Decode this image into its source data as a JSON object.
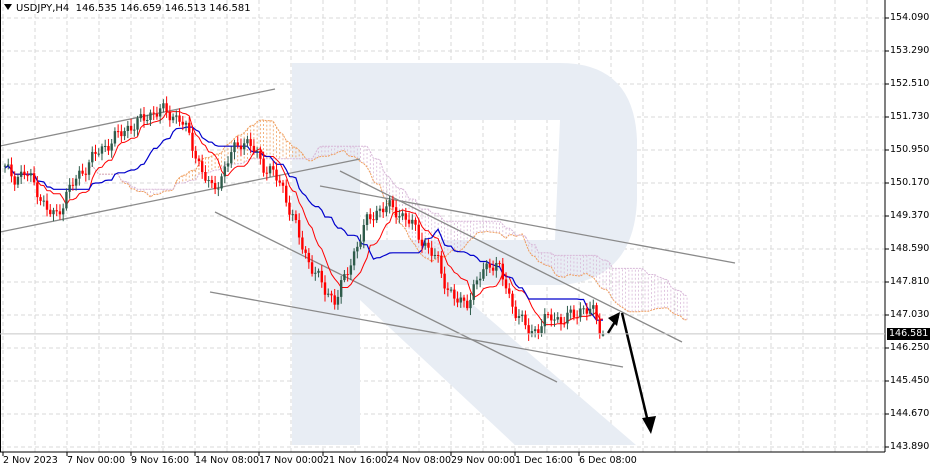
{
  "header": {
    "symbol": "USDJPY,H4",
    "ohlc": "146.535 146.659 146.513 146.581"
  },
  "current_price": "146.581",
  "y_axis": {
    "labels": [
      "154.090",
      "153.290",
      "152.510",
      "151.730",
      "150.950",
      "150.170",
      "149.370",
      "148.590",
      "147.810",
      "147.030",
      "146.250",
      "145.450",
      "144.670",
      "143.890"
    ]
  },
  "x_axis": {
    "labels": [
      "2 Nov 2023",
      "7 Nov 00:00",
      "9 Nov 16:00",
      "14 Nov 08:00",
      "17 Nov 00:00",
      "21 Nov 16:00",
      "24 Nov 08:00",
      "29 Nov 00:00",
      "1 Dec 16:00",
      "6 Dec 08:00"
    ]
  },
  "colors": {
    "bull": "#2e5b4a",
    "bear": "#ff0000",
    "tenkan": "#ff0000",
    "kijun": "#0000cc",
    "senkou_a": "#f0a060",
    "senkou_b": "#d8b8d8",
    "trendline": "#8a8a8a",
    "arrow": "#000000",
    "grid": "#d8d8d8",
    "watermark": "#e8edf4"
  },
  "chart_data": {
    "type": "candlestick",
    "title": "USDJPY,H4",
    "xlabel": "",
    "ylabel": "",
    "ylim": [
      143.89,
      154.09
    ],
    "grid": true,
    "x": [
      "2 Nov 2023",
      "7 Nov 00:00",
      "9 Nov 16:00",
      "14 Nov 08:00",
      "17 Nov 00:00",
      "21 Nov 16:00",
      "24 Nov 08:00",
      "29 Nov 00:00",
      "1 Dec 16:00",
      "6 Dec 08:00"
    ],
    "last_bar": {
      "open": 146.535,
      "high": 146.659,
      "low": 146.513,
      "close": 146.581
    },
    "price_path_close": [
      150.5,
      150.3,
      150.4,
      150.1,
      149.5,
      149.4,
      149.9,
      150.3,
      150.6,
      150.9,
      151.1,
      151.3,
      151.5,
      151.6,
      151.8,
      151.9,
      151.8,
      151.7,
      151.2,
      150.5,
      150.0,
      150.3,
      150.9,
      151.2,
      151.0,
      150.6,
      150.4,
      150.0,
      149.3,
      148.5,
      148.1,
      147.6,
      147.4,
      147.9,
      148.6,
      149.2,
      149.5,
      149.6,
      149.5,
      149.3,
      149.0,
      148.6,
      148.3,
      147.6,
      147.3,
      147.4,
      147.9,
      148.3,
      148.1,
      147.4,
      146.9,
      146.6,
      146.8,
      147.0,
      146.9,
      147.0,
      147.2,
      147.1,
      146.6
    ],
    "indicators": {
      "ichimoku": [
        "tenkan-sen (red)",
        "kijun-sen (blue)",
        "senkou span A (orange dotted)",
        "senkou span B (purple dotted)"
      ]
    },
    "annotations": [
      "Ascending channel (Nov 2 - Nov 14)",
      "Descending channel lines from Nov 17",
      "Forecast arrow up to ~147.1 then down to ~144.5"
    ]
  }
}
